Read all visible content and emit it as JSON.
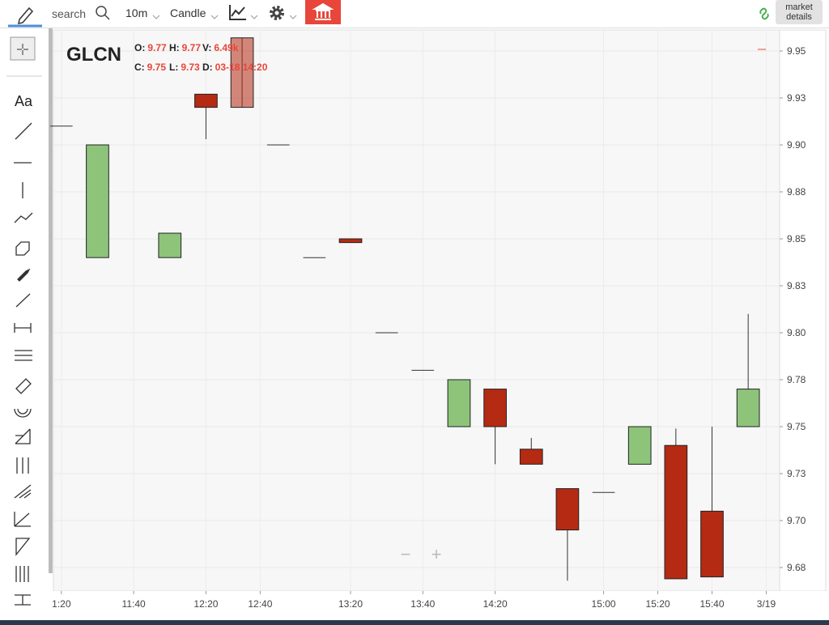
{
  "toolbar": {
    "search": "search",
    "interval": "10m",
    "chart_style": "Candle",
    "market_details": "market details",
    "text_tool": "Aa"
  },
  "zoom": {
    "minus": "−",
    "plus": "+"
  },
  "chart_data": {
    "type": "candlestick",
    "symbol": "GLCN",
    "info": [
      {
        "label": "O:",
        "value": 9.77
      },
      {
        "label": "H:",
        "value": 9.77
      },
      {
        "label": "V:",
        "value": "6.49k"
      },
      {
        "label": "C:",
        "value": 9.75
      },
      {
        "label": "L:",
        "value": 9.73
      },
      {
        "label": "D:",
        "value": "03-18 14:20"
      }
    ],
    "x": [
      0,
      1,
      3,
      4,
      5,
      6,
      7,
      8,
      9,
      10,
      11,
      12,
      13,
      14,
      15,
      16,
      17,
      18,
      19
    ],
    "open": [
      9.91,
      9.84,
      9.84,
      9.927,
      9.957,
      9.9,
      9.84,
      9.85,
      9.8,
      9.78,
      9.75,
      9.77,
      9.738,
      9.717,
      9.715,
      9.73,
      9.74,
      9.705,
      9.75
    ],
    "high": [
      9.91,
      9.9,
      9.853,
      9.927,
      9.957,
      9.9,
      9.84,
      9.85,
      9.8,
      9.78,
      9.775,
      9.77,
      9.744,
      9.717,
      9.715,
      9.75,
      9.749,
      9.75,
      9.81
    ],
    "low": [
      9.91,
      9.84,
      9.84,
      9.903,
      9.92,
      9.9,
      9.84,
      9.848,
      9.8,
      9.78,
      9.75,
      9.73,
      9.73,
      9.668,
      9.715,
      9.73,
      9.669,
      9.67,
      9.75
    ],
    "close": [
      9.91,
      9.9,
      9.853,
      9.92,
      9.92,
      9.9,
      9.84,
      9.848,
      9.8,
      9.78,
      9.775,
      9.75,
      9.73,
      9.695,
      9.715,
      9.75,
      9.669,
      9.67,
      9.77
    ],
    "up_color": "#8dc47a",
    "down_color": "#b52a12",
    "xlim": [
      -0.22,
      19.87
    ],
    "xticks": [
      {
        "value": 0,
        "label": "1:20"
      },
      {
        "value": 2,
        "label": "11:40"
      },
      {
        "value": 4,
        "label": "12:20"
      },
      {
        "value": 5.5,
        "label": "12:40"
      },
      {
        "value": 8,
        "label": "13:20"
      },
      {
        "value": 10,
        "label": "13:40"
      },
      {
        "value": 12,
        "label": "14:20"
      },
      {
        "value": 15,
        "label": "15:00"
      },
      {
        "value": 16.5,
        "label": "15:20"
      },
      {
        "value": 18,
        "label": "15:40"
      },
      {
        "value": 19.5,
        "label": "3/19"
      }
    ],
    "ylim": [
      9.6625,
      9.9612
    ],
    "yticks": [
      9.95,
      {
        "value": 9.925,
        "label": "9.93"
      },
      {
        "value": 9.9,
        "label": "9.90"
      },
      {
        "value": 9.875,
        "label": "9.88"
      },
      9.85,
      {
        "value": 9.825,
        "label": "9.83"
      },
      {
        "value": 9.8,
        "label": "9.80"
      },
      {
        "value": 9.775,
        "label": "9.78"
      },
      9.75,
      {
        "value": 9.725,
        "label": "9.73"
      },
      {
        "value": 9.7,
        "label": "9.70"
      },
      {
        "value": 9.675,
        "label": "9.68"
      }
    ],
    "grid": true
  }
}
